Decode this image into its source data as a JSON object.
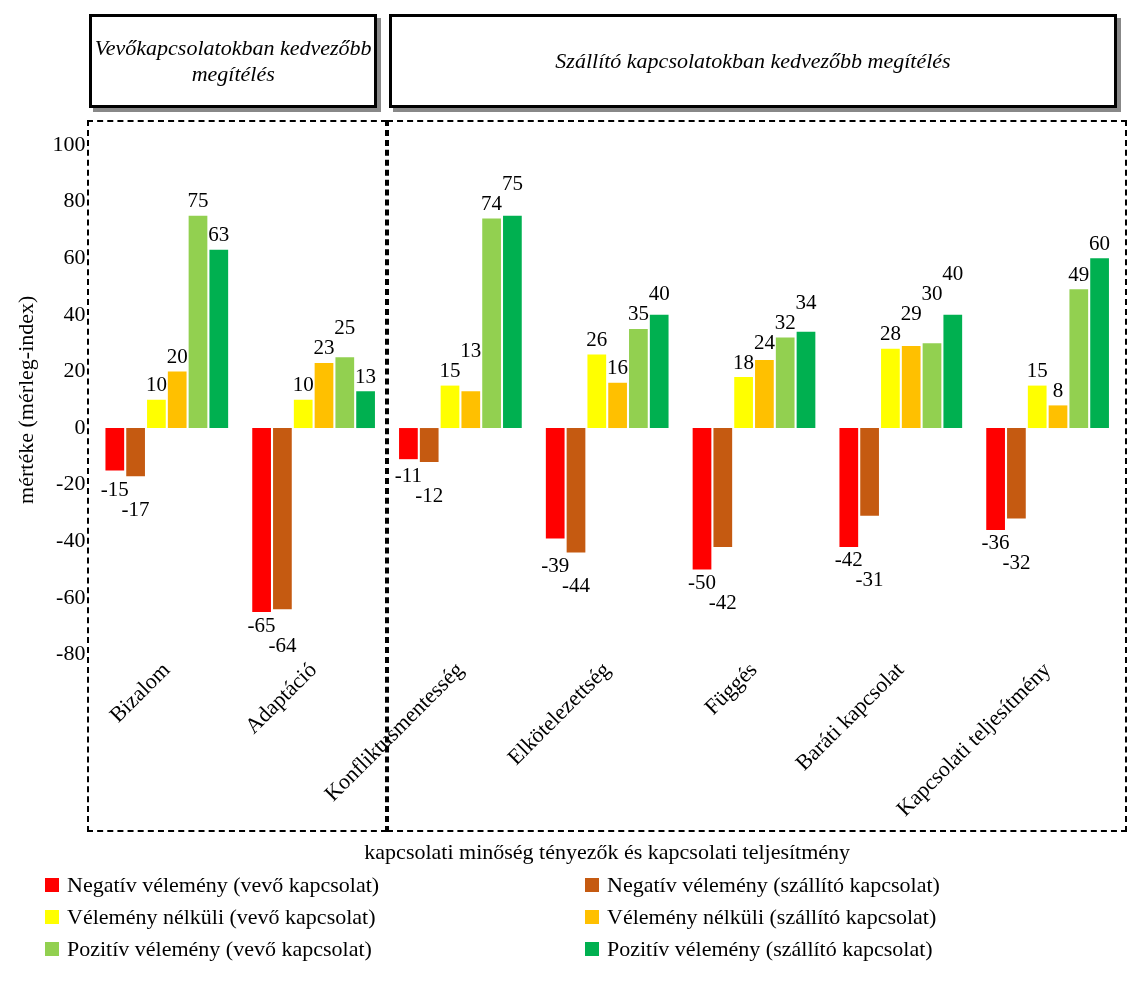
{
  "chart_data": {
    "type": "bar",
    "ylabel": "mértéke (mérleg-index)",
    "xlabel": "kapcsolati minőség tényezők és kapcsolati teljesítmény",
    "annotations": [
      "Vevőkapcsolatokban kedvezőbb megítélés",
      "Szállító kapcsolatokban kedvezőbb megítélés"
    ],
    "categories": [
      "Bizalom",
      "Adaptáció",
      "Konfliktusmentesség",
      "Elkötelezettség",
      "Függés",
      "Baráti kapcsolat",
      "Kapcsolati teljesítmény"
    ],
    "series": [
      {
        "name": "Negatív vélemény (vevő kapcsolat)",
        "color": "#ff0000",
        "values": [
          -15,
          -65,
          -11,
          -39,
          -50,
          -42,
          -36
        ]
      },
      {
        "name": "Negatív vélemény (szállító kapcsolat)",
        "color": "#c55a11",
        "values": [
          -17,
          -64,
          -12,
          -44,
          -42,
          -31,
          -32
        ]
      },
      {
        "name": "Vélemény nélküli (vevő kapcsolat)",
        "color": "#ffff00",
        "values": [
          10,
          10,
          15,
          26,
          18,
          28,
          15
        ]
      },
      {
        "name": "Vélemény nélküli (szállító kapcsolat)",
        "color": "#ffc000",
        "values": [
          20,
          23,
          13,
          16,
          24,
          29,
          8
        ]
      },
      {
        "name": "Pozitív vélemény (vevő kapcsolat)",
        "color": "#92d050",
        "values": [
          75,
          25,
          74,
          35,
          32,
          30,
          49
        ]
      },
      {
        "name": "Pozitív vélemény (szállító kapcsolat)",
        "color": "#00b050",
        "values": [
          63,
          13,
          75,
          40,
          34,
          40,
          60
        ]
      }
    ],
    "ylim": [
      -80,
      100
    ],
    "yticks": [
      -80,
      -60,
      -40,
      -20,
      0,
      20,
      40,
      60,
      80,
      100
    ],
    "grid": false,
    "legend": "bottom",
    "data_labels": true
  }
}
